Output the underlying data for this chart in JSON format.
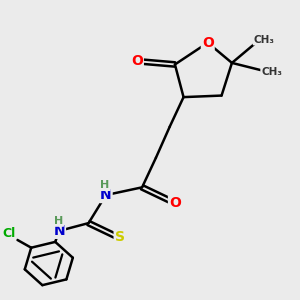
{
  "background_color": "#ebebeb",
  "atom_colors": {
    "O": "#ff0000",
    "N": "#0000cc",
    "S": "#cccc00",
    "Cl": "#00aa00",
    "C": "#000000",
    "H": "#5a9a5a"
  },
  "bond_color": "#000000",
  "bond_width": 1.8,
  "figsize": [
    3.0,
    3.0
  ],
  "dpi": 100
}
